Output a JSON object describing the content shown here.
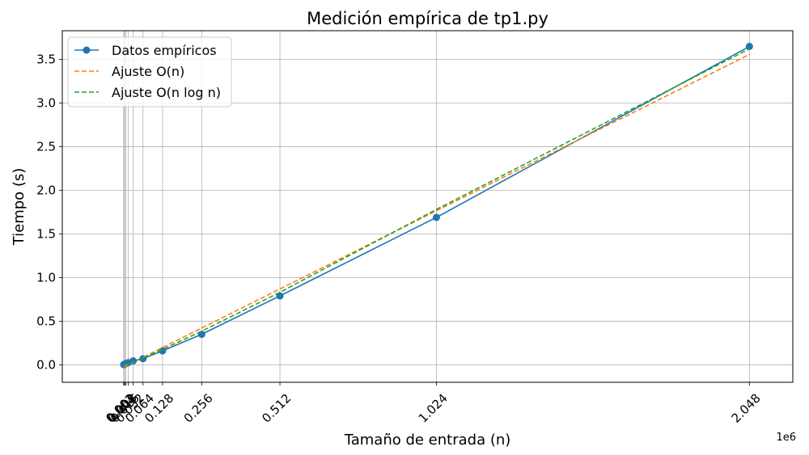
{
  "chart_data": {
    "type": "line",
    "title": "Medición empírica de tp1.py",
    "xlabel": "Tamaño de entrada (n)",
    "ylabel": "Tiempo (s)",
    "x_offset_label": "1e6",
    "x_ticks": [
      1000,
      2000,
      4000,
      8000,
      16000,
      32000,
      64000,
      128000,
      256000,
      512000,
      1024000,
      2048000
    ],
    "x_tick_labels": [
      "0.001",
      "0.002",
      "0.004",
      "0.008",
      "0.016",
      "0.032",
      "0.064",
      "0.128",
      "0.256",
      "0.512",
      "1.024",
      "2.048"
    ],
    "y_ticks": [
      0.0,
      0.5,
      1.0,
      1.5,
      2.0,
      2.5,
      3.0,
      3.5
    ],
    "y_tick_labels": [
      "0.0",
      "0.5",
      "1.0",
      "1.5",
      "2.0",
      "2.5",
      "3.0",
      "3.5"
    ],
    "xlim": [
      -200000,
      2190000
    ],
    "ylim": [
      -0.2,
      3.83
    ],
    "grid": true,
    "legend_position": "top-left",
    "x": [
      1000,
      2000,
      4000,
      8000,
      16000,
      32000,
      64000,
      128000,
      256000,
      512000,
      1024000,
      2048000
    ],
    "series": [
      {
        "name": "Datos empíricos",
        "style": "solid-marker",
        "color": "#1f77b4",
        "values": [
          0.002,
          0.004,
          0.008,
          0.015,
          0.025,
          0.045,
          0.07,
          0.16,
          0.35,
          0.79,
          1.69,
          3.65
        ]
      },
      {
        "name": "Ajuste O(n)",
        "style": "dashed",
        "color": "#ff7f0e",
        "values": [
          -0.0245,
          -0.0228,
          -0.0193,
          -0.0123,
          0.0017,
          0.0297,
          0.0857,
          0.1977,
          0.4217,
          0.8697,
          1.7657,
          3.5577
        ]
      },
      {
        "name": "Ajuste O(n log n)",
        "style": "dashed",
        "color": "#2ca02c",
        "values": [
          -0.0065,
          -0.0055,
          -0.0033,
          0.0013,
          0.0112,
          0.0327,
          0.0785,
          0.1765,
          0.3854,
          0.8318,
          1.7813,
          3.6226
        ]
      }
    ]
  }
}
